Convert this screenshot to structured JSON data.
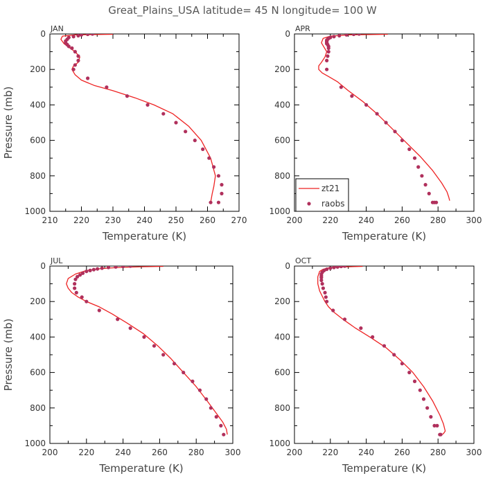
{
  "title": "Great_Plains_USA   latitude= 45 N longitude= 100 W",
  "colors": {
    "model": "#ee2222",
    "obs": "#b0305c",
    "axis": "#000000"
  },
  "legend": {
    "model": "zt21",
    "obs": "raobs"
  },
  "chart_data": [
    {
      "type": "line",
      "panel_label": "JAN",
      "xlabel": "Temperature (K)",
      "ylabel": "Pressure (mb)",
      "xlim": [
        210,
        270
      ],
      "ylim": [
        1000,
        0
      ],
      "xticks": [
        210,
        220,
        230,
        240,
        250,
        260,
        270
      ],
      "yticks": [
        0,
        200,
        400,
        600,
        800,
        1000
      ],
      "series": [
        {
          "name": "zt21",
          "kind": "line",
          "x": [
            230,
            218,
            214,
            213.5,
            214.5,
            216,
            218,
            219.5,
            219,
            217.5,
            217,
            218,
            220,
            224,
            230,
            237,
            243,
            249,
            254,
            258,
            261,
            262.5,
            262,
            261.5,
            261
          ],
          "y": [
            2,
            5,
            12,
            30,
            55,
            75,
            100,
            130,
            160,
            180,
            200,
            230,
            260,
            290,
            320,
            360,
            400,
            450,
            520,
            600,
            700,
            800,
            860,
            900,
            950
          ]
        },
        {
          "name": "raobs",
          "kind": "scatter",
          "x": [
            223.5,
            222,
            220,
            219,
            217.5,
            216,
            215.5,
            215,
            215,
            215.5,
            216,
            217,
            218,
            219,
            219,
            218,
            217.5,
            222,
            228,
            234.5,
            241,
            246,
            250,
            253,
            256,
            258.5,
            260.5,
            262,
            263.5,
            264.5,
            264.5,
            263.5,
            261
          ],
          "y": [
            0,
            2,
            5,
            10,
            15,
            20,
            30,
            40,
            50,
            60,
            70,
            80,
            100,
            125,
            150,
            175,
            200,
            250,
            300,
            350,
            400,
            450,
            500,
            550,
            600,
            650,
            700,
            750,
            800,
            850,
            900,
            950,
            950
          ]
        }
      ]
    },
    {
      "type": "line",
      "panel_label": "APR",
      "xlabel": "Temperature (K)",
      "ylabel": "",
      "xlim": [
        200,
        300
      ],
      "ylim": [
        1000,
        0
      ],
      "xticks": [
        200,
        220,
        240,
        260,
        280,
        300
      ],
      "yticks": [
        0,
        200,
        400,
        600,
        800,
        1000
      ],
      "series": [
        {
          "name": "zt21",
          "kind": "line",
          "x": [
            252,
            230,
            220,
            216,
            215,
            216.5,
            218,
            217,
            215,
            213.5,
            213.5,
            215.5,
            219,
            224,
            230,
            238,
            246,
            254,
            262,
            270,
            277,
            282,
            285,
            286,
            286.5
          ],
          "y": [
            2,
            5,
            12,
            25,
            50,
            75,
            100,
            130,
            160,
            180,
            200,
            220,
            240,
            270,
            320,
            380,
            450,
            530,
            610,
            690,
            770,
            840,
            890,
            920,
            940
          ]
        },
        {
          "name": "raobs",
          "kind": "scatter",
          "x": [
            236,
            233,
            229,
            225,
            222,
            220,
            219,
            218.5,
            218,
            218,
            218,
            218,
            218,
            218.5,
            219,
            219,
            219,
            218.5,
            218,
            218,
            226,
            232,
            240,
            246,
            251,
            256,
            260,
            264,
            267,
            269,
            271,
            273,
            275,
            277,
            278,
            279
          ],
          "y": [
            0,
            2,
            5,
            10,
            15,
            20,
            25,
            30,
            35,
            40,
            45,
            50,
            55,
            60,
            70,
            80,
            100,
            125,
            150,
            200,
            300,
            350,
            400,
            450,
            500,
            550,
            600,
            650,
            700,
            750,
            800,
            850,
            900,
            950,
            950,
            950
          ]
        }
      ]
    },
    {
      "type": "line",
      "panel_label": "JUL",
      "xlabel": "Temperature (K)",
      "ylabel": "Pressure (mb)",
      "xlim": [
        200,
        300
      ],
      "ylim": [
        1000,
        0
      ],
      "xticks": [
        200,
        220,
        240,
        260,
        280,
        300
      ],
      "yticks": [
        0,
        200,
        400,
        600,
        800,
        1000
      ],
      "series": [
        {
          "name": "zt21",
          "kind": "line",
          "x": [
            262,
            250,
            238,
            228,
            220,
            214,
            210,
            209,
            210,
            212,
            215.5,
            220,
            227,
            234,
            242,
            251,
            259,
            266,
            273,
            280,
            286,
            291,
            294.5,
            296.5,
            297
          ],
          "y": [
            2,
            4,
            8,
            14,
            25,
            45,
            70,
            100,
            125,
            150,
            175,
            200,
            230,
            270,
            320,
            380,
            450,
            520,
            600,
            680,
            760,
            830,
            880,
            920,
            950
          ]
        },
        {
          "name": "raobs",
          "kind": "scatter",
          "x": [
            244,
            240,
            236,
            232,
            228.5,
            226,
            224,
            222,
            220,
            218,
            216.5,
            215,
            214,
            213.5,
            213.5,
            214.5,
            217.5,
            220,
            227,
            237,
            244,
            251.5,
            257,
            262,
            268,
            273,
            278,
            282,
            285.5,
            288,
            291,
            293.5,
            295
          ],
          "y": [
            0,
            2,
            5,
            8,
            12,
            16,
            20,
            25,
            30,
            40,
            50,
            60,
            75,
            100,
            125,
            150,
            175,
            200,
            250,
            300,
            350,
            400,
            450,
            500,
            550,
            600,
            650,
            700,
            750,
            800,
            850,
            900,
            950
          ]
        }
      ]
    },
    {
      "type": "line",
      "panel_label": "OCT",
      "xlabel": "Temperature (K)",
      "ylabel": "",
      "xlim": [
        200,
        300
      ],
      "ylim": [
        1000,
        0
      ],
      "xticks": [
        200,
        220,
        240,
        260,
        280,
        300
      ],
      "yticks": [
        0,
        200,
        400,
        600,
        800,
        1000
      ],
      "series": [
        {
          "name": "zt21",
          "kind": "line",
          "x": [
            238,
            226,
            219,
            216,
            214,
            213,
            213,
            214,
            215.5,
            217,
            219,
            222,
            227,
            234,
            242,
            251,
            259,
            266,
            272,
            277,
            281,
            283,
            284,
            283,
            282,
            281
          ],
          "y": [
            2,
            5,
            10,
            18,
            30,
            60,
            100,
            140,
            170,
            200,
            230,
            260,
            300,
            350,
            400,
            460,
            530,
            600,
            680,
            760,
            840,
            890,
            930,
            945,
            950,
            950
          ]
        },
        {
          "name": "raobs",
          "kind": "scatter",
          "x": [
            228,
            226,
            224,
            222,
            220,
            218,
            216.5,
            215.5,
            215,
            215,
            215,
            215,
            215.5,
            216,
            217,
            217.5,
            218,
            221.5,
            228,
            237,
            243.5,
            250,
            255.5,
            260,
            264,
            267,
            270,
            272,
            274,
            276,
            278,
            279.5,
            281.5,
            281
          ],
          "y": [
            0,
            2,
            5,
            8,
            12,
            18,
            25,
            35,
            45,
            55,
            65,
            80,
            100,
            125,
            150,
            175,
            200,
            250,
            300,
            350,
            400,
            450,
            500,
            550,
            600,
            650,
            700,
            750,
            800,
            850,
            900,
            900,
            950,
            950
          ]
        }
      ]
    }
  ]
}
